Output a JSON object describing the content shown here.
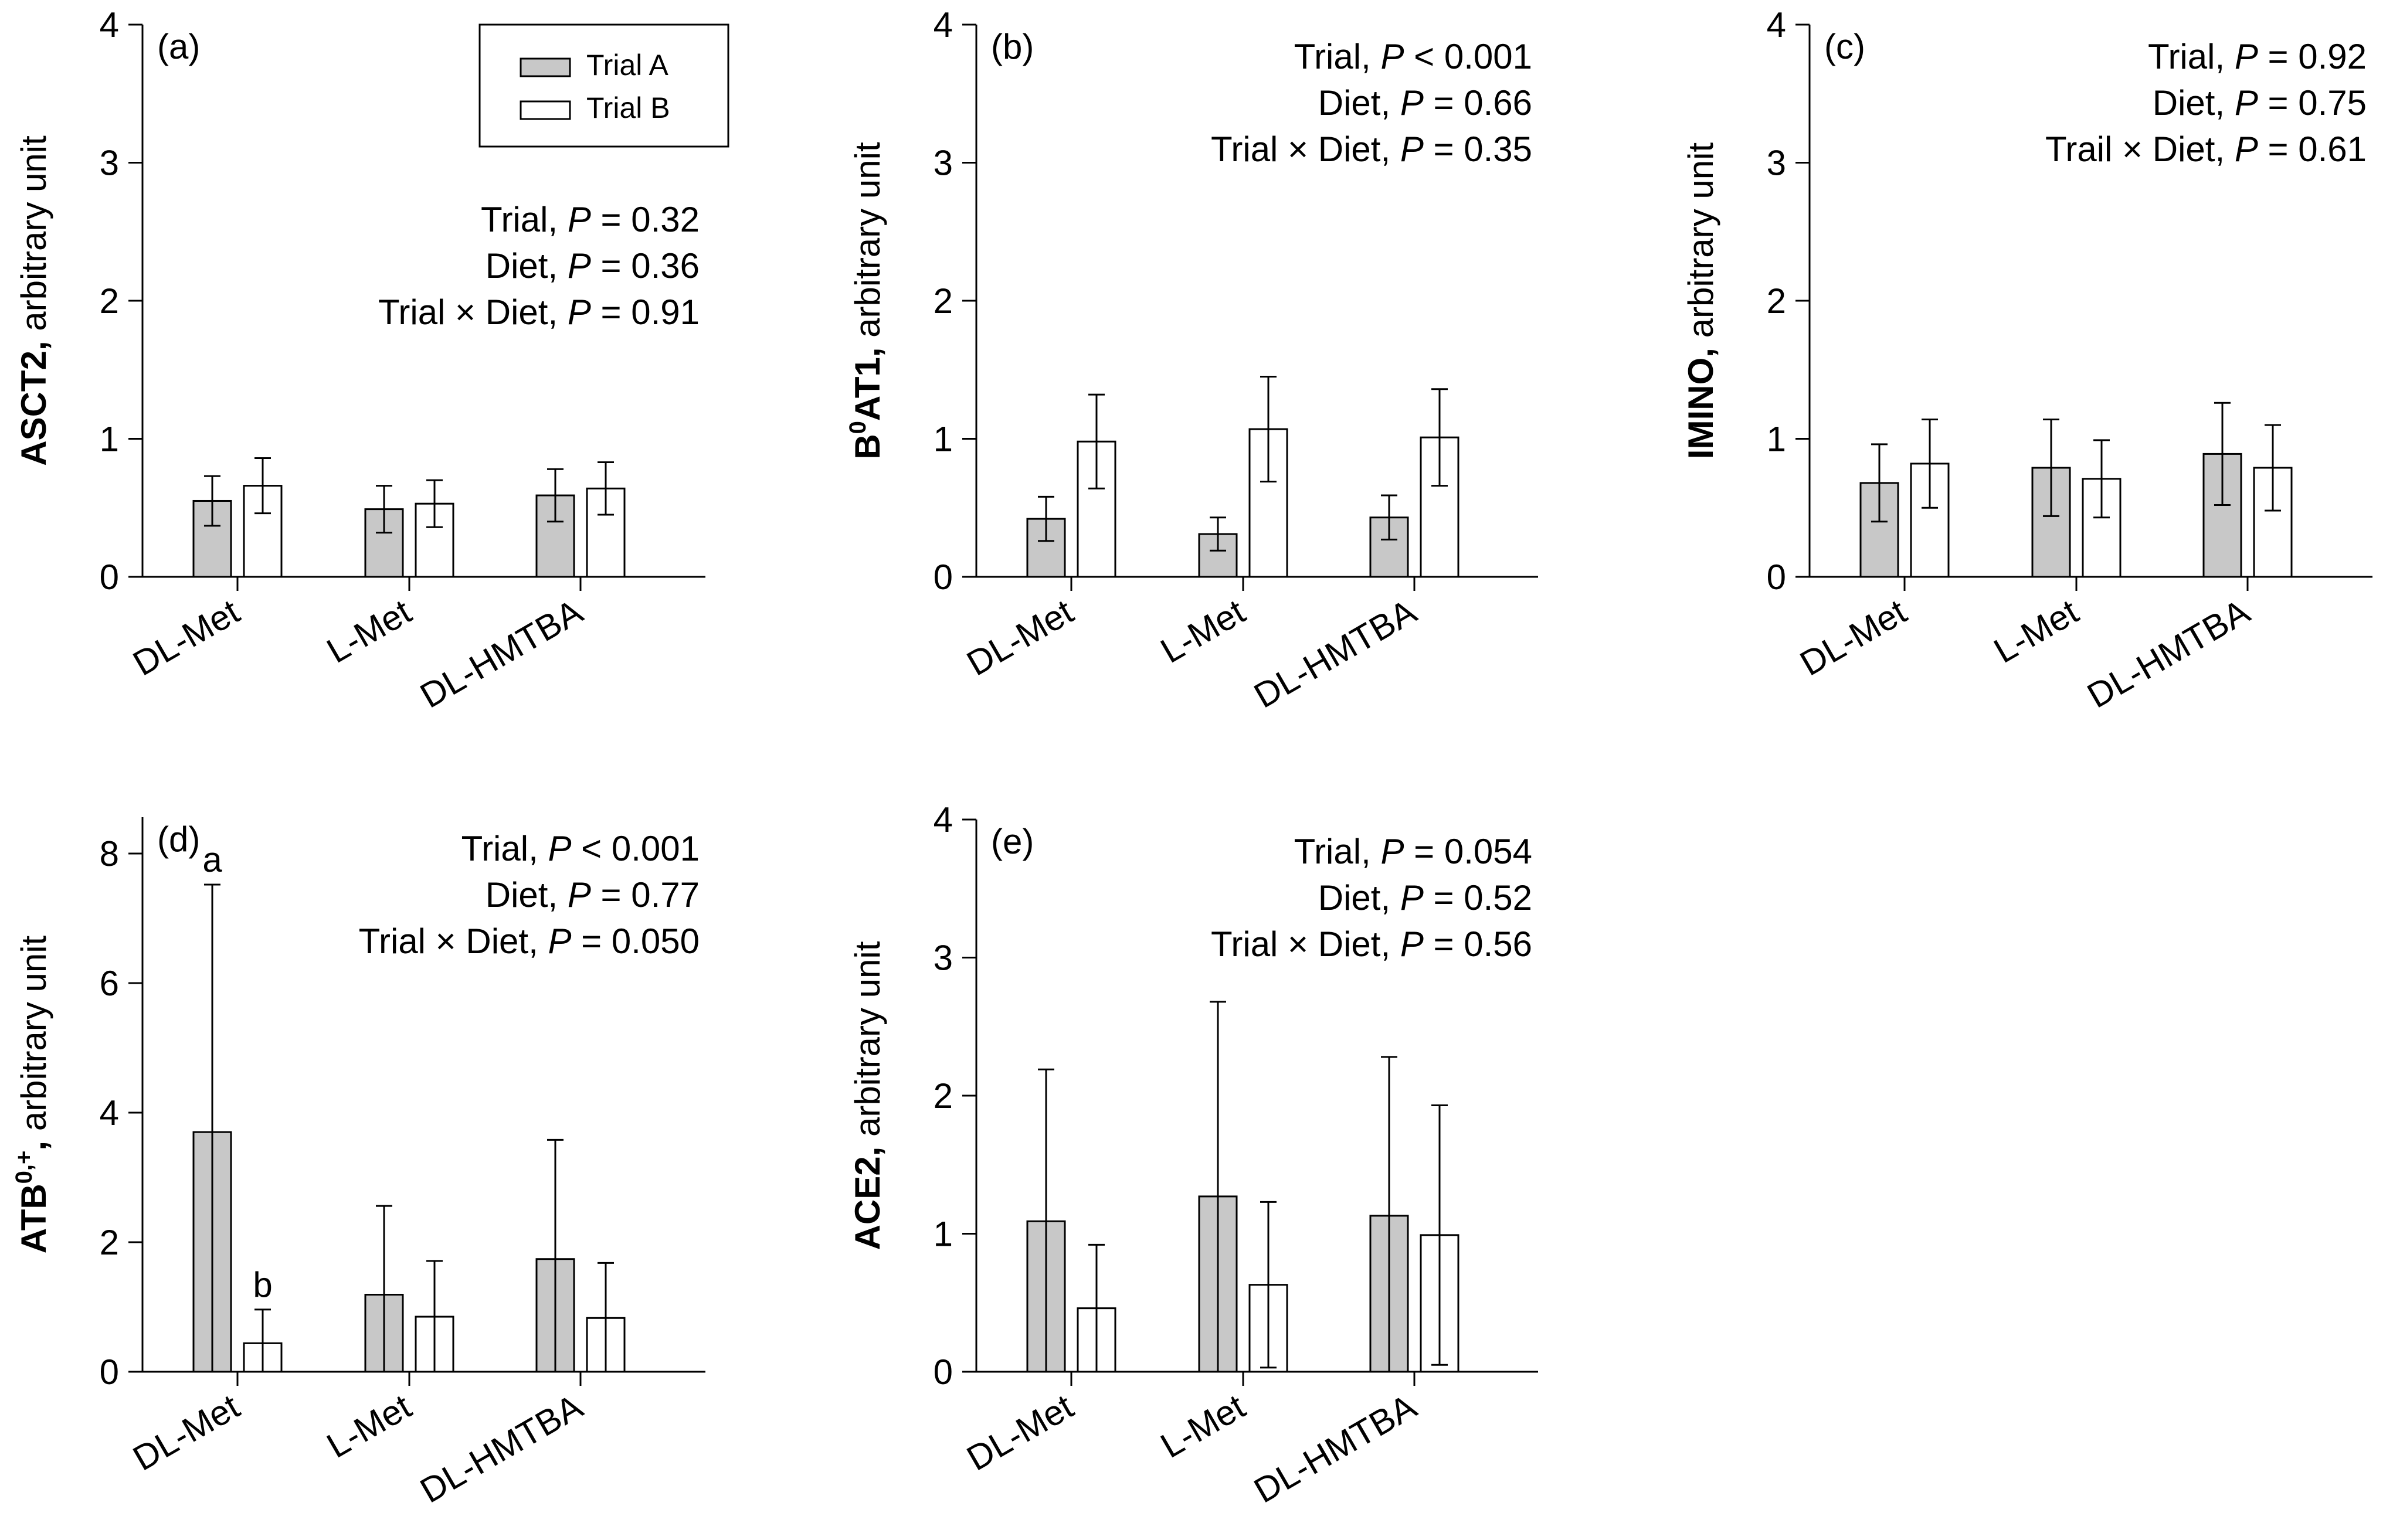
{
  "legend": {
    "items": [
      {
        "label": "Trial A",
        "fill": "#c8c8c8"
      },
      {
        "label": "Trial B",
        "fill": "#ffffff"
      }
    ]
  },
  "chart_data": [
    {
      "type": "bar",
      "panel_label": "(a)",
      "ylabel_bold": "ASCT2,",
      "ylabel_rest": " arbitrary unit",
      "ylim": [
        0,
        4
      ],
      "yticks": [
        "0",
        "1",
        "2",
        "3",
        "4"
      ],
      "categories": [
        "DL-Met",
        "L-Met",
        "DL-HMTBA"
      ],
      "series": [
        {
          "name": "Trial A",
          "values": [
            0.55,
            0.49,
            0.59
          ],
          "errors": [
            0.18,
            0.17,
            0.19
          ]
        },
        {
          "name": "Trial B",
          "values": [
            0.66,
            0.53,
            0.64
          ],
          "errors": [
            0.2,
            0.17,
            0.19
          ]
        }
      ],
      "stats": [
        {
          "pre": "Trial, ",
          "p": "P",
          "post": " = 0.32"
        },
        {
          "pre": "Diet, ",
          "p": "P",
          "post": " = 0.36"
        },
        {
          "pre": "Trial × Diet, ",
          "p": "P",
          "post": " = 0.91"
        }
      ],
      "letters": []
    },
    {
      "type": "bar",
      "panel_label": "(b)",
      "ylabel_bold": "B",
      "ylabel_sup": "0",
      "ylabel_bold2": "AT1,",
      "ylabel_rest": " arbitrary unit",
      "ylim": [
        0,
        4
      ],
      "yticks": [
        "0",
        "1",
        "2",
        "3",
        "4"
      ],
      "categories": [
        "DL-Met",
        "L-Met",
        "DL-HMTBA"
      ],
      "series": [
        {
          "name": "Trial A",
          "values": [
            0.42,
            0.31,
            0.43
          ],
          "errors": [
            0.16,
            0.12,
            0.16
          ]
        },
        {
          "name": "Trial B",
          "values": [
            0.98,
            1.07,
            1.01
          ],
          "errors": [
            0.34,
            0.38,
            0.35
          ]
        }
      ],
      "stats": [
        {
          "pre": "Trial, ",
          "p": "P",
          "post": " < 0.001"
        },
        {
          "pre": "Diet, ",
          "p": "P",
          "post": " = 0.66"
        },
        {
          "pre": "Trial × Diet, ",
          "p": "P",
          "post": " = 0.35"
        }
      ],
      "letters": []
    },
    {
      "type": "bar",
      "panel_label": "(c)",
      "ylabel_bold": "IMINO,",
      "ylabel_rest": " arbitrary unit",
      "ylim": [
        0,
        4
      ],
      "yticks": [
        "0",
        "1",
        "2",
        "3",
        "4"
      ],
      "categories": [
        "DL-Met",
        "L-Met",
        "DL-HMTBA"
      ],
      "series": [
        {
          "name": "Trial A",
          "values": [
            0.68,
            0.79,
            0.89
          ],
          "errors": [
            0.28,
            0.35,
            0.37
          ]
        },
        {
          "name": "Trial B",
          "values": [
            0.82,
            0.71,
            0.79
          ],
          "errors": [
            0.32,
            0.28,
            0.31
          ]
        }
      ],
      "stats": [
        {
          "pre": "Trial, ",
          "p": "P",
          "post": " = 0.92"
        },
        {
          "pre": "Diet, ",
          "p": "P",
          "post": " = 0.75"
        },
        {
          "pre": "Trail × Diet, ",
          "p": "P",
          "post": " = 0.61"
        }
      ],
      "letters": []
    },
    {
      "type": "bar",
      "panel_label": "(d)",
      "ylabel_bold": "ATB",
      "ylabel_sup": "0,+",
      "ylabel_bold2": ",",
      "ylabel_rest": " arbitrary unit",
      "ylim": [
        0,
        8.5
      ],
      "yticks": [
        "0",
        "2",
        "4",
        "6",
        "8"
      ],
      "ytick_values": [
        0,
        2,
        4,
        6,
        8
      ],
      "categories": [
        "DL-Met",
        "L-Met",
        "DL-HMTBA"
      ],
      "series": [
        {
          "name": "Trial A",
          "values": [
            3.7,
            1.19,
            1.74
          ],
          "errors": [
            3.82,
            1.37,
            1.84
          ]
        },
        {
          "name": "Trial B",
          "values": [
            0.44,
            0.85,
            0.83
          ],
          "errors": [
            0.52,
            0.86,
            0.85
          ]
        }
      ],
      "stats": [
        {
          "pre": "Trial, ",
          "p": "P",
          "post": " < 0.001"
        },
        {
          "pre": "Diet, ",
          "p": "P",
          "post": " = 0.77"
        },
        {
          "pre": "Trial × Diet, ",
          "p": "P",
          "post": " = 0.050"
        }
      ],
      "letters": [
        {
          "category": 0,
          "series": 0,
          "text": "a"
        },
        {
          "category": 0,
          "series": 1,
          "text": "b"
        }
      ]
    },
    {
      "type": "bar",
      "panel_label": "(e)",
      "ylabel_bold": "ACE2,",
      "ylabel_rest": " arbitrary unit",
      "ylim": [
        0,
        4
      ],
      "yticks": [
        "0",
        "1",
        "2",
        "3",
        "4"
      ],
      "categories": [
        "DL-Met",
        "L-Met",
        "DL-HMTBA"
      ],
      "series": [
        {
          "name": "Trial A",
          "values": [
            1.09,
            1.27,
            1.13
          ],
          "errors": [
            1.1,
            1.41,
            1.15
          ]
        },
        {
          "name": "Trial B",
          "values": [
            0.46,
            0.63,
            0.99
          ],
          "errors": [
            0.46,
            0.6,
            0.94
          ]
        }
      ],
      "stats": [
        {
          "pre": "Trial, ",
          "p": "P",
          "post": " = 0.054"
        },
        {
          "pre": "Diet, ",
          "p": "P",
          "post": " = 0.52"
        },
        {
          "pre": "Trial × Diet, ",
          "p": "P",
          "post": " = 0.56"
        }
      ],
      "letters": []
    }
  ]
}
